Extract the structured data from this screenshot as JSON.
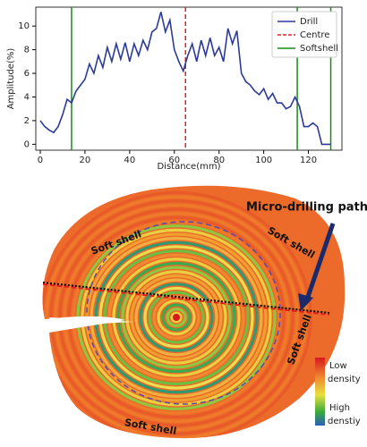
{
  "chart_data": {
    "type": "line",
    "xlabel": "Distance(mm)",
    "ylabel": "Amplitude(%)",
    "x": [
      0,
      2,
      4,
      6,
      8,
      10,
      12,
      14,
      16,
      18,
      20,
      22,
      24,
      26,
      28,
      30,
      32,
      34,
      36,
      38,
      40,
      42,
      44,
      46,
      48,
      50,
      52,
      54,
      56,
      58,
      60,
      62,
      64,
      66,
      68,
      70,
      72,
      74,
      76,
      78,
      80,
      82,
      84,
      86,
      88,
      90,
      92,
      94,
      96,
      98,
      100,
      102,
      104,
      106,
      108,
      110,
      112,
      114,
      116,
      118,
      120,
      122,
      124,
      126,
      128,
      130
    ],
    "series": [
      {
        "name": "Drill",
        "color": "#2b3a9a",
        "values": [
          2,
          1.5,
          1.2,
          1.0,
          1.5,
          2.5,
          3.8,
          3.5,
          4.5,
          5,
          5.5,
          6.8,
          6.0,
          7.5,
          6.5,
          8.2,
          7,
          8.5,
          7.2,
          8.6,
          7,
          8.5,
          7.5,
          8.8,
          8,
          9.5,
          9.8,
          11.2,
          9.5,
          10.5,
          8,
          7,
          6.2,
          7.5,
          8.5,
          7,
          8.8,
          7.5,
          9,
          7.5,
          8.2,
          7,
          9.8,
          8.5,
          9.6,
          6,
          5.3,
          5,
          4.5,
          4.2,
          4.7,
          3.8,
          4.3,
          3.5,
          3.5,
          3,
          3.2,
          4,
          3.2,
          1.5,
          1.5,
          1.8,
          1.5,
          0,
          0,
          0
        ]
      }
    ],
    "vlines": [
      {
        "name": "Centre",
        "color": "#e02020",
        "dashed": true,
        "x": [
          65
        ]
      },
      {
        "name": "Softshell",
        "color": "#1a8a1a",
        "dashed": false,
        "x": [
          14,
          115,
          130
        ]
      }
    ],
    "xlim": [
      -2,
      135
    ],
    "ylim": [
      -0.5,
      11.6
    ],
    "xticks": [
      0,
      20,
      40,
      60,
      80,
      100,
      120
    ],
    "yticks": [
      0,
      2,
      4,
      6,
      8,
      10
    ],
    "legend": "upper right"
  },
  "figure": {
    "path_label": "Micro-drilling path",
    "soft_shell_labels": [
      "Soft shell",
      "Soft shell",
      "Soft shell",
      "Soft shell"
    ],
    "colorbar": {
      "low": [
        "Low",
        "density"
      ],
      "high": [
        "High",
        "denstiy"
      ]
    }
  }
}
